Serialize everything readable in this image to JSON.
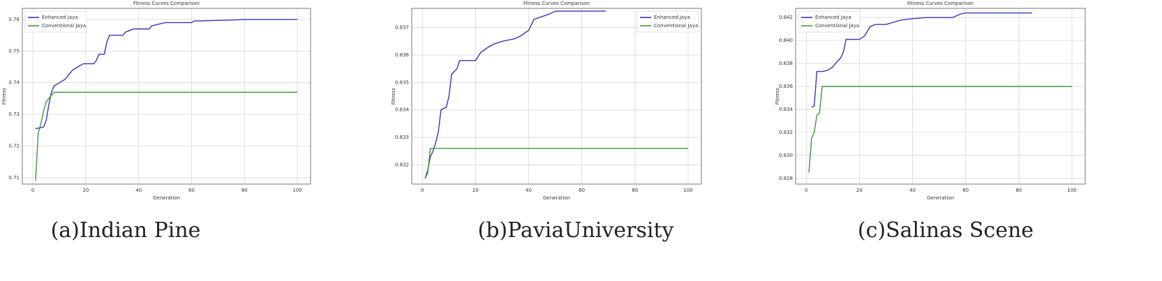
{
  "chart_data": [
    {
      "type": "line",
      "title": "Fitness Curves Comparison",
      "x_label": "Generation",
      "y_label": "Fitness",
      "caption": "(a)Indian Pine",
      "xlim": [
        -4,
        105
      ],
      "xticks": [
        0,
        20,
        40,
        60,
        80,
        100
      ],
      "ylim": [
        0.708,
        0.7635
      ],
      "yticks": [
        0.71,
        0.72,
        0.73,
        0.74,
        0.75,
        0.76
      ],
      "grid": true,
      "legend": "upper left",
      "series": [
        {
          "name": "Enhanced Jaya",
          "color": "#3535b8",
          "x": [
            1,
            4,
            5,
            6,
            7,
            8,
            10,
            12,
            13,
            15,
            17,
            19,
            23,
            24,
            25,
            27,
            28,
            29,
            34,
            35,
            38,
            44,
            45,
            50,
            60,
            61,
            75,
            80,
            100
          ],
          "values": [
            0.7255,
            0.726,
            0.728,
            0.733,
            0.737,
            0.739,
            0.74,
            0.741,
            0.742,
            0.744,
            0.745,
            0.746,
            0.746,
            0.747,
            0.749,
            0.749,
            0.753,
            0.755,
            0.755,
            0.756,
            0.757,
            0.757,
            0.758,
            0.759,
            0.759,
            0.7595,
            0.7598,
            0.76,
            0.76
          ]
        },
        {
          "name": "Conventional Jaya",
          "color": "#3a9a3a",
          "x": [
            1,
            2,
            3,
            4,
            5,
            6,
            7,
            8,
            100
          ],
          "values": [
            0.709,
            0.724,
            0.727,
            0.731,
            0.734,
            0.735,
            0.736,
            0.737,
            0.737
          ]
        }
      ]
    },
    {
      "type": "line",
      "title": "Fitness Curves Comparison",
      "x_label": "Generation",
      "y_label": "Fitness",
      "caption": "(b)PaviaUniversity",
      "xlim": [
        -4,
        105
      ],
      "xticks": [
        0,
        20,
        40,
        60,
        80,
        100
      ],
      "ylim": [
        0.8313,
        0.8377
      ],
      "yticks": [
        0.832,
        0.833,
        0.834,
        0.835,
        0.836,
        0.837
      ],
      "grid": true,
      "legend": "upper right",
      "series": [
        {
          "name": "Enhanced Jaya",
          "color": "#3535b8",
          "x": [
            1,
            2,
            3,
            4,
            5,
            6,
            7,
            9,
            10,
            11,
            13,
            14,
            20,
            22,
            25,
            27,
            30,
            35,
            37,
            40,
            42,
            45,
            48,
            50,
            69
          ],
          "values": [
            0.8315,
            0.8318,
            0.8323,
            0.8325,
            0.8328,
            0.8332,
            0.834,
            0.8341,
            0.8345,
            0.8353,
            0.8355,
            0.8358,
            0.8358,
            0.8361,
            0.8363,
            0.8364,
            0.8365,
            0.8366,
            0.8367,
            0.8369,
            0.8373,
            0.8374,
            0.8375,
            0.8376,
            0.8376
          ]
        },
        {
          "name": "Conventional Jaya",
          "color": "#3a9a3a",
          "x": [
            1,
            2,
            3,
            100
          ],
          "values": [
            0.8315,
            0.8317,
            0.8326,
            0.8326
          ]
        }
      ]
    },
    {
      "type": "line",
      "title": "Fitness Curves Comparison",
      "x_label": "Generation",
      "y_label": "Fitness",
      "caption": "(c)Salinas Scene",
      "xlim": [
        -4,
        105
      ],
      "xticks": [
        0,
        20,
        40,
        60,
        80,
        100
      ],
      "ylim": [
        0.8275,
        0.8428
      ],
      "yticks": [
        0.828,
        {
          "value": 0.83,
          "label": "0.830"
        },
        0.832,
        0.834,
        0.836,
        0.838,
        {
          "value": 0.84,
          "label": "0.840"
        },
        0.842
      ],
      "grid": true,
      "legend": "upper left",
      "series": [
        {
          "name": "Enhanced Jaya",
          "color": "#3535b8",
          "x": [
            2,
            3,
            4,
            6,
            8,
            10,
            11,
            13,
            14,
            15,
            20,
            22,
            24,
            26,
            30,
            33,
            36,
            40,
            45,
            55,
            58,
            60,
            85
          ],
          "values": [
            0.8342,
            0.8343,
            0.8373,
            0.8373,
            0.8374,
            0.8377,
            0.838,
            0.8385,
            0.839,
            0.8401,
            0.8401,
            0.8404,
            0.8412,
            0.8414,
            0.8414,
            0.8416,
            0.8418,
            0.8419,
            0.842,
            0.842,
            0.8423,
            0.8424,
            0.8424
          ]
        },
        {
          "name": "Conventional Jaya",
          "color": "#3a9a3a",
          "x": [
            1,
            2,
            3,
            4,
            5,
            6,
            100
          ],
          "values": [
            0.8285,
            0.8315,
            0.832,
            0.8335,
            0.8337,
            0.836,
            0.836
          ]
        }
      ]
    }
  ]
}
